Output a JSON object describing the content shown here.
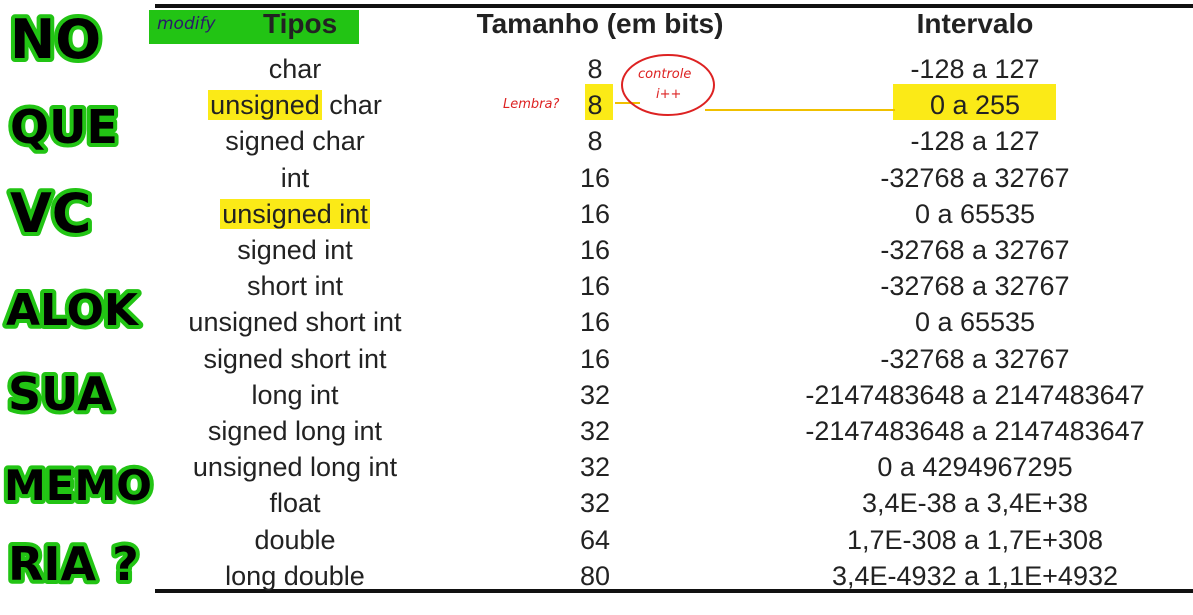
{
  "side_text": [
    "NO",
    "QUE",
    "VC",
    "ALOK",
    "SUA",
    "MEMO",
    "RIA ?"
  ],
  "header": {
    "annotation": "modify",
    "col1": "Tipos",
    "col2": "Tamanho (em bits)",
    "col3": "Intervalo"
  },
  "rows": [
    {
      "tipo_pre": "",
      "tipo_hl": "",
      "tipo_post": "char",
      "size": "8",
      "range": "-128 a 127"
    },
    {
      "tipo_pre": "",
      "tipo_hl": "unsigned",
      "tipo_post": " char",
      "size": "8",
      "range": "0 a 255"
    },
    {
      "tipo_pre": "",
      "tipo_hl": "",
      "tipo_post": "signed char",
      "size": "8",
      "range": "-128 a 127"
    },
    {
      "tipo_pre": "",
      "tipo_hl": "",
      "tipo_post": "int",
      "size": "16",
      "range": "-32768 a 32767"
    },
    {
      "tipo_pre": "",
      "tipo_hl": "unsigned int",
      "tipo_post": "",
      "size": "16",
      "range": "0 a 65535"
    },
    {
      "tipo_pre": "",
      "tipo_hl": "",
      "tipo_post": "signed int",
      "size": "16",
      "range": "-32768 a 32767"
    },
    {
      "tipo_pre": "",
      "tipo_hl": "",
      "tipo_post": "short int",
      "size": "16",
      "range": "-32768 a 32767"
    },
    {
      "tipo_pre": "",
      "tipo_hl": "",
      "tipo_post": "unsigned short int",
      "size": "16",
      "range": "0 a 65535"
    },
    {
      "tipo_pre": "",
      "tipo_hl": "",
      "tipo_post": "signed short int",
      "size": "16",
      "range": "-32768 a 32767"
    },
    {
      "tipo_pre": "",
      "tipo_hl": "",
      "tipo_post": "long int",
      "size": "32",
      "range": "-2147483648 a 2147483647"
    },
    {
      "tipo_pre": "",
      "tipo_hl": "",
      "tipo_post": "signed long int",
      "size": "32",
      "range": "-2147483648 a 2147483647"
    },
    {
      "tipo_pre": "",
      "tipo_hl": "",
      "tipo_post": "unsigned long int",
      "size": "32",
      "range": "0 a 4294967295"
    },
    {
      "tipo_pre": "",
      "tipo_hl": "",
      "tipo_post": "float",
      "size": "32",
      "range": "3,4E-38 a 3,4E+38"
    },
    {
      "tipo_pre": "",
      "tipo_hl": "",
      "tipo_post": "double",
      "size": "64",
      "range": "1,7E-308 a 1,7E+308"
    },
    {
      "tipo_pre": "",
      "tipo_hl": "",
      "tipo_post": "long double",
      "size": "80",
      "range": "3,4E-4932 a 1,1E+4932"
    }
  ],
  "notes": {
    "lembra": "Lembra?",
    "bubble_line1": "controle",
    "bubble_line2": "i++"
  },
  "colors": {
    "highlight": "#fbea17",
    "green": "#22c414",
    "red_ink": "#d22222"
  }
}
